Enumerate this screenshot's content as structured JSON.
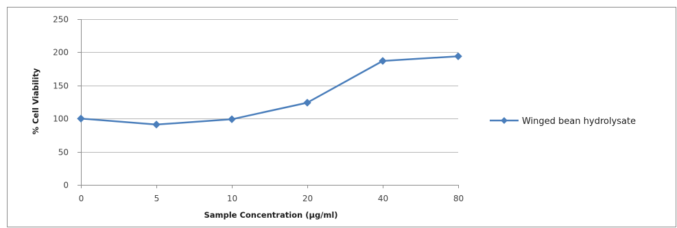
{
  "colors": {
    "series": "#4a7ebb",
    "grid": "#b8b8b8",
    "axis": "#8c8c8c",
    "frame": "#8c8c8c",
    "background": "#ffffff"
  },
  "chart_data": {
    "type": "line",
    "categories": [
      "0",
      "5",
      "10",
      "20",
      "40",
      "80"
    ],
    "series": [
      {
        "name": "Winged bean hydrolysate",
        "values": [
          100,
          91,
          99,
          124,
          187,
          194
        ],
        "marker": "diamond"
      }
    ],
    "xlabel": "Sample Concentration (µg/ml)",
    "ylabel": "% Cell Viability",
    "ylim": [
      0,
      250
    ],
    "yticks": [
      0,
      50,
      100,
      150,
      200,
      250
    ],
    "grid": true,
    "legend_position": "right"
  }
}
